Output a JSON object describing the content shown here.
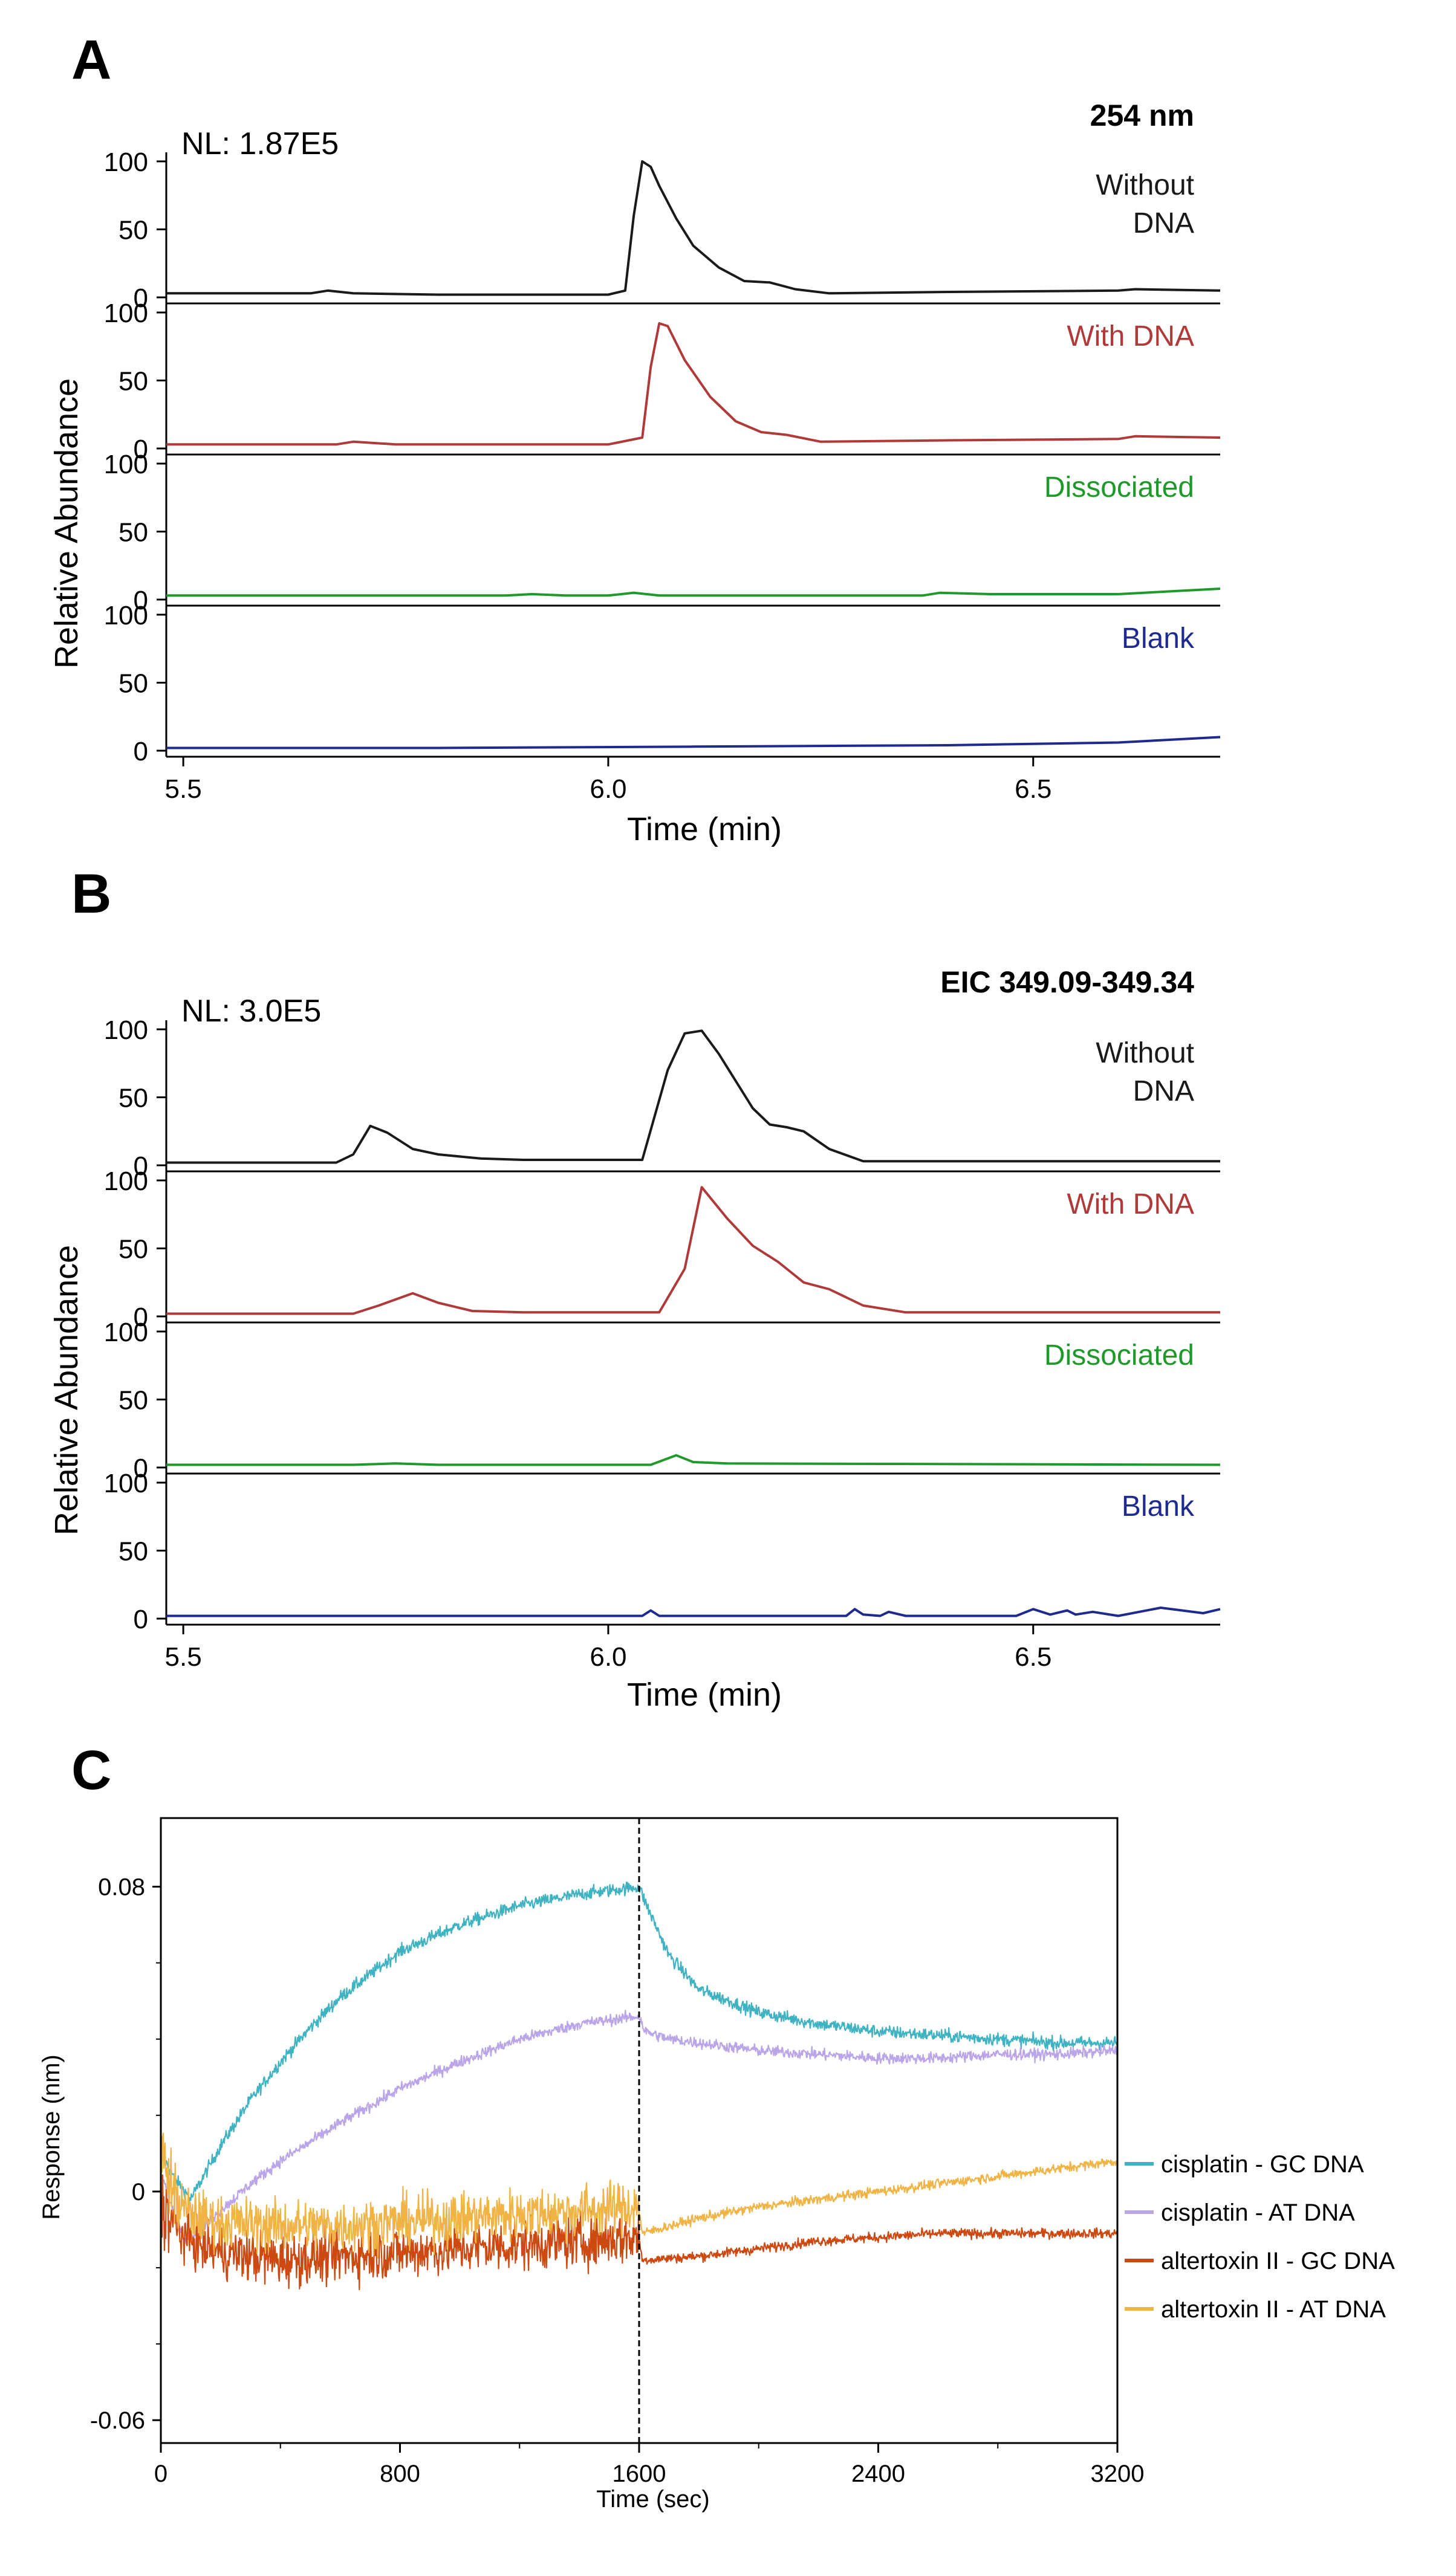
{
  "colors": {
    "axis": "#000000",
    "without_dna": "#1a1a1a",
    "with_dna": "#b03a3a",
    "dissociated": "#1f9a2a",
    "blank": "#1f2a8f",
    "cisplatin_gc": "#3fb3c2",
    "cisplatin_at": "#b9a5e8",
    "altertoxin_gc": "#cc4a12",
    "altertoxin_at": "#f0b445"
  },
  "chart_data": [
    {
      "type": "line",
      "panel_label": "A",
      "title": "254 nm",
      "nl": "NL: 1.87E5",
      "xlabel": "Time (min)",
      "ylabel": "Relative Abundance",
      "xlim": [
        5.48,
        6.72
      ],
      "xticks": [
        "5.5",
        "6.0",
        "6.5"
      ],
      "xtick_values": [
        5.5,
        6.0,
        6.5
      ],
      "ylim": [
        0,
        100
      ],
      "yticks": [
        "0",
        "50",
        "100"
      ],
      "ytick_values": [
        0,
        50,
        100
      ],
      "series": [
        {
          "name": "Without\nDNA",
          "name_lines": [
            "Without",
            "DNA"
          ],
          "color_key": "without_dna",
          "x": [
            5.48,
            5.65,
            5.67,
            5.7,
            5.8,
            6.0,
            6.02,
            6.03,
            6.04,
            6.05,
            6.06,
            6.08,
            6.1,
            6.13,
            6.16,
            6.19,
            6.22,
            6.26,
            6.4,
            6.6,
            6.62,
            6.72
          ],
          "y": [
            3,
            3,
            5,
            3,
            2,
            2,
            5,
            60,
            100,
            96,
            82,
            58,
            38,
            22,
            12,
            11,
            6,
            3,
            4,
            5,
            6,
            5
          ]
        },
        {
          "name": "With DNA",
          "name_lines": [
            "With DNA"
          ],
          "color_key": "with_dna",
          "x": [
            5.48,
            5.68,
            5.7,
            5.75,
            6.0,
            6.04,
            6.05,
            6.06,
            6.07,
            6.09,
            6.12,
            6.15,
            6.18,
            6.21,
            6.25,
            6.4,
            6.6,
            6.62,
            6.72
          ],
          "y": [
            3,
            3,
            5,
            3,
            3,
            8,
            60,
            92,
            90,
            65,
            38,
            20,
            12,
            10,
            5,
            6,
            7,
            9,
            8
          ]
        },
        {
          "name": "Dissociated",
          "name_lines": [
            "Dissociated"
          ],
          "color_key": "dissociated",
          "x": [
            5.48,
            5.88,
            5.91,
            5.95,
            6.0,
            6.03,
            6.06,
            6.3,
            6.37,
            6.39,
            6.45,
            6.6,
            6.72
          ],
          "y": [
            3,
            3,
            4,
            3,
            3,
            5,
            3,
            3,
            3,
            5,
            4,
            4,
            8
          ]
        },
        {
          "name": "Blank",
          "name_lines": [
            "Blank"
          ],
          "color_key": "blank",
          "x": [
            5.48,
            5.8,
            6.1,
            6.4,
            6.6,
            6.72
          ],
          "y": [
            2,
            2,
            3,
            4,
            6,
            10
          ]
        }
      ]
    },
    {
      "type": "line",
      "panel_label": "B",
      "title": "EIC 349.09-349.34",
      "nl": "NL: 3.0E5",
      "xlabel": "Time (min)",
      "ylabel": "Relative Abundance",
      "xlim": [
        5.48,
        6.72
      ],
      "xticks": [
        "5.5",
        "6.0",
        "6.5"
      ],
      "xtick_values": [
        5.5,
        6.0,
        6.5
      ],
      "ylim": [
        0,
        100
      ],
      "yticks": [
        "0",
        "50",
        "100"
      ],
      "ytick_values": [
        0,
        50,
        100
      ],
      "series": [
        {
          "name": "Without\nDNA",
          "name_lines": [
            "Without",
            "DNA"
          ],
          "color_key": "without_dna",
          "x": [
            5.48,
            5.68,
            5.7,
            5.72,
            5.74,
            5.77,
            5.8,
            5.85,
            5.9,
            6.04,
            6.07,
            6.09,
            6.11,
            6.13,
            6.15,
            6.17,
            6.19,
            6.21,
            6.23,
            6.26,
            6.3,
            6.72
          ],
          "y": [
            2,
            2,
            8,
            29,
            24,
            12,
            8,
            5,
            4,
            4,
            70,
            97,
            99,
            82,
            62,
            42,
            30,
            28,
            25,
            12,
            3,
            3
          ]
        },
        {
          "name": "With DNA",
          "name_lines": [
            "With DNA"
          ],
          "color_key": "with_dna",
          "x": [
            5.48,
            5.7,
            5.73,
            5.77,
            5.8,
            5.84,
            5.9,
            6.06,
            6.09,
            6.11,
            6.14,
            6.17,
            6.2,
            6.23,
            6.26,
            6.3,
            6.35,
            6.72
          ],
          "y": [
            2,
            2,
            8,
            17,
            10,
            4,
            3,
            3,
            35,
            95,
            72,
            52,
            40,
            25,
            20,
            8,
            3,
            3
          ]
        },
        {
          "name": "Dissociated",
          "name_lines": [
            "Dissociated"
          ],
          "color_key": "dissociated",
          "x": [
            5.48,
            5.7,
            5.75,
            5.8,
            6.05,
            6.08,
            6.1,
            6.14,
            6.72
          ],
          "y": [
            2,
            2,
            3,
            2,
            2,
            9,
            4,
            3,
            2
          ]
        },
        {
          "name": "Blank",
          "name_lines": [
            "Blank"
          ],
          "color_key": "blank",
          "x": [
            5.48,
            6.04,
            6.05,
            6.06,
            6.28,
            6.29,
            6.3,
            6.32,
            6.33,
            6.35,
            6.48,
            6.5,
            6.52,
            6.54,
            6.55,
            6.57,
            6.6,
            6.65,
            6.7,
            6.72
          ],
          "y": [
            2,
            2,
            6,
            2,
            2,
            7,
            3,
            2,
            5,
            2,
            2,
            7,
            3,
            6,
            3,
            5,
            2,
            8,
            4,
            7
          ]
        }
      ]
    },
    {
      "type": "line",
      "panel_label": "C",
      "title": "",
      "xlabel": "Time (sec)",
      "ylabel": "Response (nm)",
      "xlim": [
        0,
        3200
      ],
      "xticks": [
        "0",
        "800",
        "1600",
        "2400",
        "3200"
      ],
      "xtick_values": [
        0,
        800,
        1600,
        2400,
        3200
      ],
      "ylim": [
        -0.066,
        0.098
      ],
      "yticks": [
        "-0.06",
        "0",
        "0.08"
      ],
      "ytick_values": [
        -0.06,
        0,
        0.08
      ],
      "vline": 1600,
      "legend_position": "right",
      "series": [
        {
          "name": "cisplatin - GC DNA",
          "color_key": "cisplatin_gc",
          "x": [
            0,
            50,
            100,
            200,
            300,
            400,
            500,
            600,
            800,
            1000,
            1200,
            1400,
            1600,
            1620,
            1700,
            1800,
            2000,
            2200,
            2400,
            2600,
            2800,
            3000,
            3200
          ],
          "y": [
            0.01,
            0.003,
            -0.002,
            0.012,
            0.024,
            0.034,
            0.043,
            0.051,
            0.063,
            0.07,
            0.075,
            0.078,
            0.08,
            0.076,
            0.062,
            0.053,
            0.047,
            0.044,
            0.042,
            0.041,
            0.04,
            0.039,
            0.039
          ],
          "noise": 0.0016
        },
        {
          "name": "cisplatin - AT DNA",
          "color_key": "cisplatin_at",
          "x": [
            0,
            40,
            80,
            120,
            200,
            300,
            400,
            600,
            800,
            1000,
            1200,
            1400,
            1600,
            1620,
            1700,
            1800,
            2000,
            2200,
            2400,
            2600,
            2800,
            3000,
            3200
          ],
          "y": [
            0.005,
            -0.005,
            -0.012,
            -0.011,
            -0.005,
            0.002,
            0.008,
            0.018,
            0.027,
            0.034,
            0.04,
            0.044,
            0.046,
            0.042,
            0.04,
            0.039,
            0.037,
            0.036,
            0.035,
            0.035,
            0.036,
            0.036,
            0.037
          ],
          "noise": 0.0014
        },
        {
          "name": "altertoxin II - GC DNA",
          "color_key": "altertoxin_gc",
          "x": [
            0,
            50,
            100,
            200,
            400,
            600,
            800,
            1000,
            1200,
            1400,
            1600,
            1610,
            1800,
            2000,
            2200,
            2400,
            2600,
            2800,
            3000,
            3200
          ],
          "y": [
            -0.003,
            -0.01,
            -0.013,
            -0.016,
            -0.018,
            -0.017,
            -0.016,
            -0.015,
            -0.014,
            -0.013,
            -0.012,
            -0.018,
            -0.017,
            -0.015,
            -0.013,
            -0.012,
            -0.011,
            -0.011,
            -0.011,
            -0.011
          ],
          "noise": 0.0065,
          "noise_after_vline": 0.0012
        },
        {
          "name": "altertoxin II - AT DNA",
          "color_key": "altertoxin_at",
          "x": [
            0,
            50,
            100,
            200,
            400,
            600,
            800,
            1000,
            1200,
            1400,
            1600,
            1610,
            1800,
            2000,
            2200,
            2400,
            2600,
            2800,
            3000,
            3200
          ],
          "y": [
            0.01,
            -0.002,
            -0.006,
            -0.008,
            -0.009,
            -0.009,
            -0.008,
            -0.007,
            -0.006,
            -0.005,
            -0.004,
            -0.011,
            -0.007,
            -0.004,
            -0.002,
            0.0,
            0.002,
            0.004,
            0.006,
            0.008
          ],
          "noise": 0.0065,
          "noise_after_vline": 0.0012
        }
      ]
    }
  ]
}
